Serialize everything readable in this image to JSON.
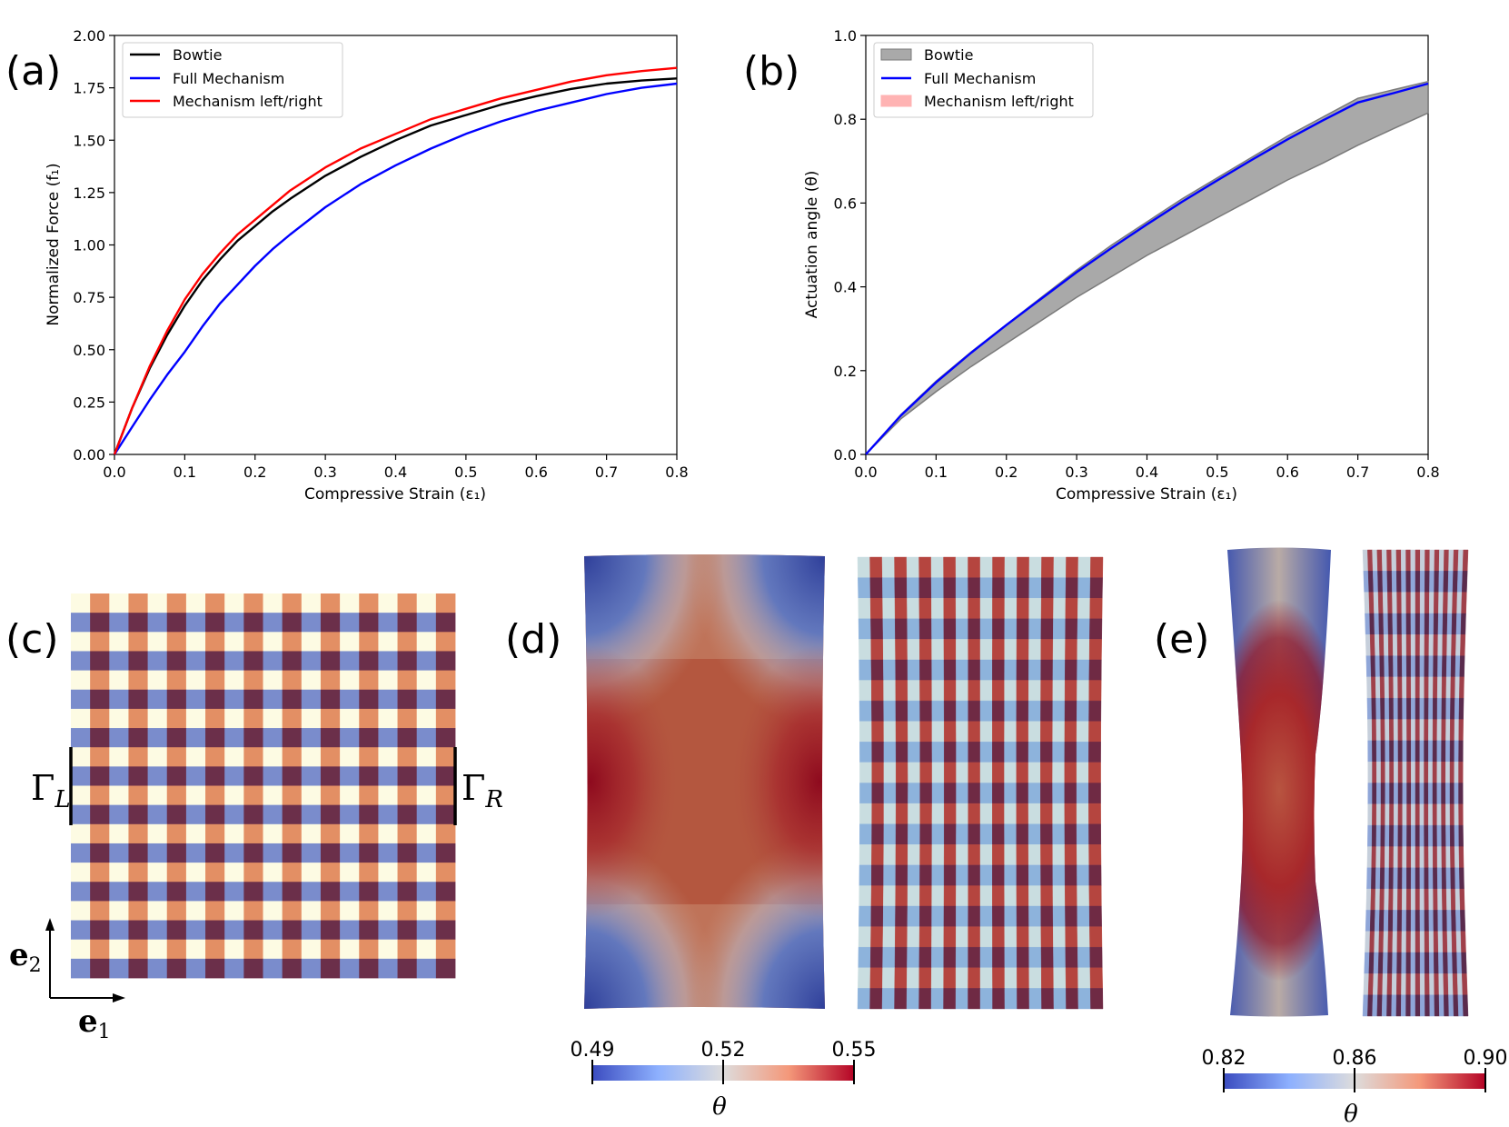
{
  "panel_labels": [
    "(a)",
    "(b)",
    "(c)",
    "(d)",
    "(e)"
  ],
  "chart_data": [
    {
      "type": "line",
      "panel": "(a)",
      "xlabel": "Compressive Strain (ε₁)",
      "ylabel": "Normalized Force (f₁)",
      "xlim": [
        0,
        0.8
      ],
      "ylim": [
        0,
        2.0
      ],
      "xticks": [
        "0.0",
        "0.1",
        "0.2",
        "0.3",
        "0.4",
        "0.5",
        "0.6",
        "0.7",
        "0.8"
      ],
      "yticks": [
        "0.00",
        "0.25",
        "0.50",
        "0.75",
        "1.00",
        "1.25",
        "1.50",
        "1.75",
        "2.00"
      ],
      "legend_location": "upper-left",
      "grid": false,
      "series": [
        {
          "name": "Bowtie",
          "color": "#000000",
          "x": [
            0,
            0.025,
            0.05,
            0.075,
            0.1,
            0.125,
            0.15,
            0.175,
            0.2,
            0.225,
            0.25,
            0.3,
            0.35,
            0.4,
            0.45,
            0.5,
            0.55,
            0.6,
            0.65,
            0.7,
            0.75,
            0.8
          ],
          "y": [
            0,
            0.22,
            0.41,
            0.57,
            0.71,
            0.83,
            0.93,
            1.02,
            1.09,
            1.16,
            1.22,
            1.33,
            1.42,
            1.5,
            1.57,
            1.62,
            1.67,
            1.71,
            1.745,
            1.77,
            1.785,
            1.795
          ]
        },
        {
          "name": "Full Mechanism",
          "color": "#0000ff",
          "x": [
            0,
            0.025,
            0.05,
            0.075,
            0.1,
            0.125,
            0.15,
            0.175,
            0.2,
            0.225,
            0.25,
            0.3,
            0.35,
            0.4,
            0.45,
            0.5,
            0.55,
            0.6,
            0.65,
            0.7,
            0.75,
            0.8
          ],
          "y": [
            0,
            0.13,
            0.26,
            0.38,
            0.49,
            0.61,
            0.72,
            0.81,
            0.9,
            0.98,
            1.05,
            1.18,
            1.29,
            1.38,
            1.46,
            1.53,
            1.59,
            1.64,
            1.68,
            1.72,
            1.75,
            1.77
          ]
        },
        {
          "name": "Mechanism left/right",
          "color": "#ff0000",
          "x": [
            0,
            0.025,
            0.05,
            0.075,
            0.1,
            0.125,
            0.15,
            0.175,
            0.2,
            0.225,
            0.25,
            0.3,
            0.35,
            0.4,
            0.45,
            0.5,
            0.55,
            0.6,
            0.65,
            0.7,
            0.75,
            0.8
          ],
          "y": [
            0,
            0.22,
            0.42,
            0.59,
            0.74,
            0.86,
            0.96,
            1.05,
            1.12,
            1.19,
            1.26,
            1.37,
            1.46,
            1.53,
            1.6,
            1.65,
            1.7,
            1.74,
            1.78,
            1.81,
            1.83,
            1.845
          ]
        }
      ]
    },
    {
      "type": "line",
      "panel": "(b)",
      "xlabel": "Compressive Strain (ε₁)",
      "ylabel": "Actuation angle (θ)",
      "xlim": [
        0,
        0.8
      ],
      "ylim": [
        0,
        1.0
      ],
      "xticks": [
        "0.0",
        "0.1",
        "0.2",
        "0.3",
        "0.4",
        "0.5",
        "0.6",
        "0.7",
        "0.8"
      ],
      "yticks": [
        "0.0",
        "0.2",
        "0.4",
        "0.6",
        "0.8",
        "1.0"
      ],
      "legend_location": "upper-left",
      "grid": false,
      "bands": [
        {
          "name": "Bowtie",
          "fill": "#a9a9a9",
          "edge": "#7a7a7a",
          "x": [
            0,
            0.05,
            0.1,
            0.15,
            0.2,
            0.25,
            0.3,
            0.35,
            0.4,
            0.45,
            0.5,
            0.55,
            0.6,
            0.65,
            0.7,
            0.75,
            0.8
          ],
          "lower": [
            0,
            0.085,
            0.15,
            0.21,
            0.265,
            0.32,
            0.375,
            0.425,
            0.475,
            0.52,
            0.565,
            0.61,
            0.655,
            0.695,
            0.738,
            0.777,
            0.815
          ],
          "upper": [
            0,
            0.095,
            0.175,
            0.245,
            0.31,
            0.375,
            0.44,
            0.5,
            0.555,
            0.61,
            0.66,
            0.71,
            0.76,
            0.805,
            0.85,
            0.87,
            0.89
          ]
        },
        {
          "name": "Mechanism left/right",
          "fill": "#ffb3b3",
          "edge": "#ffb3b3",
          "x": [],
          "lower": [],
          "upper": []
        }
      ],
      "series": [
        {
          "name": "Full Mechanism",
          "color": "#0000ff",
          "x": [
            0,
            0.05,
            0.1,
            0.15,
            0.2,
            0.25,
            0.3,
            0.35,
            0.4,
            0.45,
            0.5,
            0.55,
            0.6,
            0.65,
            0.7,
            0.75,
            0.8
          ],
          "y": [
            0,
            0.093,
            0.172,
            0.243,
            0.309,
            0.372,
            0.435,
            0.493,
            0.549,
            0.603,
            0.654,
            0.704,
            0.752,
            0.797,
            0.84,
            0.862,
            0.885
          ]
        }
      ],
      "legend_order": [
        "Bowtie",
        "Full Mechanism",
        "Mechanism left/right"
      ]
    },
    {
      "type": "heatmap",
      "panel": "(c)",
      "boundary_labels": {
        "left": "Γ",
        "left_sub": "L",
        "right": "Γ",
        "right_sub": "R"
      },
      "axis_labels": {
        "e1": "e",
        "e1_sub": "1",
        "e2": "e",
        "e2_sub": "2"
      },
      "colors": {
        "cream": "#fdfbe3",
        "orange": "#e38f64",
        "blue": "#7a8ccc",
        "plum": "#6b2f4a"
      }
    },
    {
      "type": "heatmap",
      "panel": "(d)",
      "colorbar": {
        "label": "θ",
        "ticks": [
          "0.49",
          "0.52",
          "0.55"
        ],
        "min": 0.49,
        "max": 0.55
      }
    },
    {
      "type": "heatmap",
      "panel": "(e)",
      "colorbar": {
        "label": "θ",
        "ticks": [
          "0.82",
          "0.86",
          "0.90"
        ],
        "min": 0.82,
        "max": 0.9
      }
    }
  ]
}
